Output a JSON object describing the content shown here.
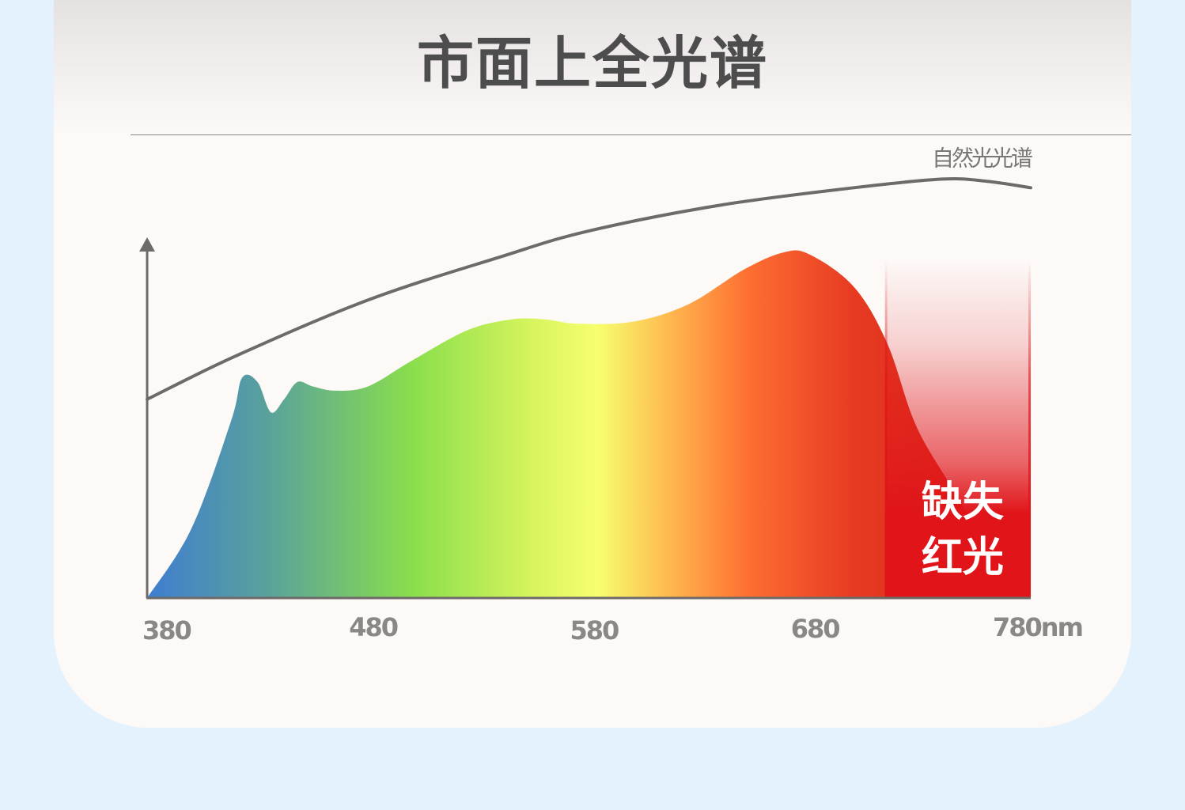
{
  "title": "市面上全光谱",
  "chart_data": {
    "type": "area",
    "x_unit": "nm",
    "xlim": [
      380,
      780
    ],
    "x_ticks": [
      {
        "value": 380,
        "label": "380"
      },
      {
        "value": 480,
        "label": "480"
      },
      {
        "value": 580,
        "label": "580"
      },
      {
        "value": 680,
        "label": "680"
      },
      {
        "value": 780,
        "label": "780nm"
      }
    ],
    "ylim": [
      0,
      1
    ],
    "series": [
      {
        "name": "自然光光谱",
        "kind": "line",
        "color": "#6e6a6a",
        "points": [
          [
            380,
            0.46
          ],
          [
            420,
            0.56
          ],
          [
            480,
            0.69
          ],
          [
            540,
            0.79
          ],
          [
            580,
            0.85
          ],
          [
            640,
            0.91
          ],
          [
            700,
            0.95
          ],
          [
            740,
            0.97
          ],
          [
            760,
            0.965
          ],
          [
            780,
            0.95
          ]
        ]
      },
      {
        "kind": "area",
        "colors": [
          "#3f7dd0",
          "#5aa39a",
          "#8ade4c",
          "#d8f55e",
          "#f7ff6f",
          "#ffb04b",
          "#fd6f32",
          "#e63a22",
          "#d62518"
        ],
        "points": [
          [
            380,
            0.0
          ],
          [
            400,
            0.16
          ],
          [
            418,
            0.41
          ],
          [
            423,
            0.51
          ],
          [
            430,
            0.5
          ],
          [
            436,
            0.43
          ],
          [
            442,
            0.46
          ],
          [
            448,
            0.5
          ],
          [
            455,
            0.49
          ],
          [
            465,
            0.48
          ],
          [
            480,
            0.49
          ],
          [
            500,
            0.55
          ],
          [
            525,
            0.62
          ],
          [
            545,
            0.645
          ],
          [
            560,
            0.645
          ],
          [
            575,
            0.635
          ],
          [
            600,
            0.64
          ],
          [
            625,
            0.68
          ],
          [
            650,
            0.76
          ],
          [
            668,
            0.8
          ],
          [
            680,
            0.795
          ],
          [
            700,
            0.72
          ],
          [
            715,
            0.59
          ],
          [
            728,
            0.4
          ],
          [
            745,
            0.25
          ],
          [
            762,
            0.1
          ],
          [
            780,
            0.0
          ]
        ]
      }
    ],
    "highlight": {
      "x_range": [
        714,
        780
      ],
      "label_lines": [
        "缺失",
        "红光"
      ],
      "color": "#e01419"
    }
  }
}
